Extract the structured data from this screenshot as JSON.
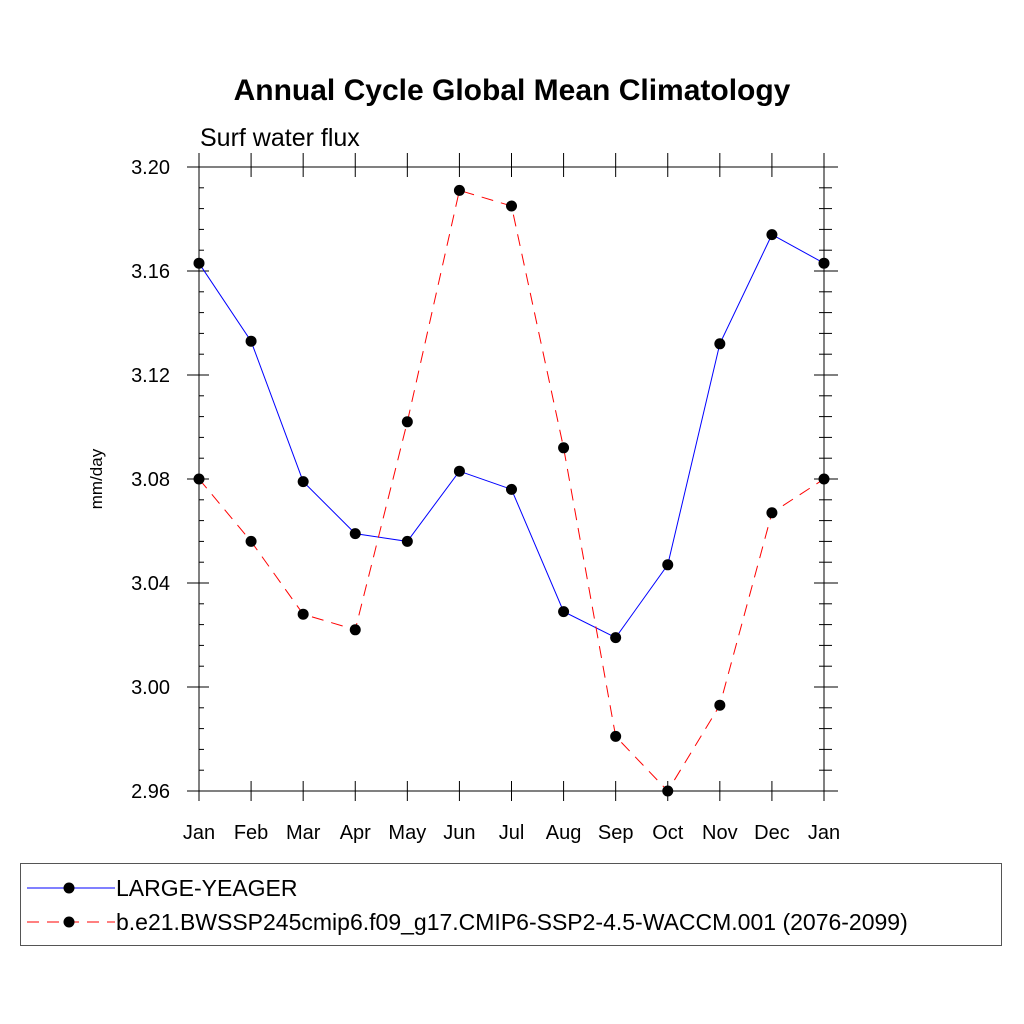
{
  "chart_data": {
    "type": "line",
    "title": "Annual Cycle Global Mean Climatology",
    "subtitle": "Surf water flux",
    "xlabel": "",
    "ylabel": "mm/day",
    "categories": [
      "Jan",
      "Feb",
      "Mar",
      "Apr",
      "May",
      "Jun",
      "Jul",
      "Aug",
      "Sep",
      "Oct",
      "Nov",
      "Dec",
      "Jan"
    ],
    "ylim": [
      2.96,
      3.2
    ],
    "yticks": [
      "3.20",
      "3.16",
      "3.12",
      "3.08",
      "3.04",
      "3.00",
      "2.96"
    ],
    "ytick_values": [
      3.2,
      3.16,
      3.12,
      3.08,
      3.04,
      3.0,
      2.96
    ],
    "series": [
      {
        "name": "LARGE-YEAGER",
        "color": "#0000ff",
        "dash": "solid",
        "values": [
          3.163,
          3.133,
          3.079,
          3.059,
          3.056,
          3.083,
          3.076,
          3.029,
          3.019,
          3.047,
          3.132,
          3.174,
          3.163
        ]
      },
      {
        "name": "b.e21.BWSSP245cmip6.f09_g17.CMIP6-SSP2-4.5-WACCM.001 (2076-2099)",
        "color": "#ff0000",
        "dash": "dashed",
        "values": [
          3.08,
          3.056,
          3.028,
          3.022,
          3.102,
          3.191,
          3.185,
          3.092,
          2.981,
          2.96,
          2.993,
          3.067,
          3.08
        ]
      }
    ],
    "legend_position": "bottom"
  }
}
